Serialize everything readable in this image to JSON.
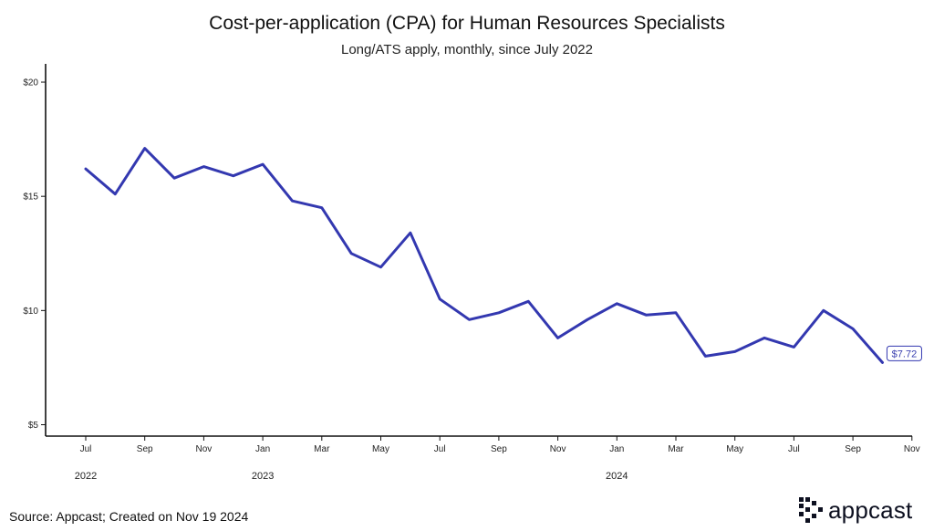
{
  "chart_data": {
    "type": "line",
    "title": "Cost-per-application (CPA) for Human Resources Specialists",
    "subtitle": "Long/ATS apply, monthly, since July 2022",
    "xlabel": "",
    "ylabel": "",
    "ylim": [
      4.5,
      20.8
    ],
    "yticks": [
      5,
      10,
      15,
      20
    ],
    "ytick_labels": [
      "$5",
      "$10",
      "$15",
      "$20"
    ],
    "x_month_ticks": [
      {
        "month": 0,
        "label": "Jul"
      },
      {
        "month": 2,
        "label": "Sep"
      },
      {
        "month": 4,
        "label": "Nov"
      },
      {
        "month": 6,
        "label": "Jan"
      },
      {
        "month": 8,
        "label": "Mar"
      },
      {
        "month": 10,
        "label": "May"
      },
      {
        "month": 12,
        "label": "Jul"
      },
      {
        "month": 14,
        "label": "Sep"
      },
      {
        "month": 16,
        "label": "Nov"
      },
      {
        "month": 18,
        "label": "Jan"
      },
      {
        "month": 20,
        "label": "Mar"
      },
      {
        "month": 22,
        "label": "May"
      },
      {
        "month": 24,
        "label": "Jul"
      },
      {
        "month": 26,
        "label": "Sep"
      },
      {
        "month": 28,
        "label": "Nov"
      }
    ],
    "year_labels": [
      {
        "month": 0,
        "label": "2022"
      },
      {
        "month": 6,
        "label": "2023"
      },
      {
        "month": 18,
        "label": "2024"
      }
    ],
    "color": "#3338b0",
    "series": [
      {
        "values": [
          16.2,
          15.1,
          17.1,
          15.8,
          16.3,
          15.9,
          16.4,
          14.8,
          14.5,
          12.5,
          11.9,
          13.4,
          10.5,
          9.6,
          9.9,
          10.4,
          8.8,
          9.6,
          10.3,
          9.8,
          9.9,
          8.0,
          8.2,
          8.8,
          8.4,
          10.0,
          9.2,
          7.72
        ]
      }
    ],
    "end_label": "$7.72",
    "grid": false
  },
  "footer": {
    "source": "Source: Appcast; Created on Nov 19 2024",
    "logo_text": "appcast",
    "logo_icon": "pixel-grid-icon"
  }
}
